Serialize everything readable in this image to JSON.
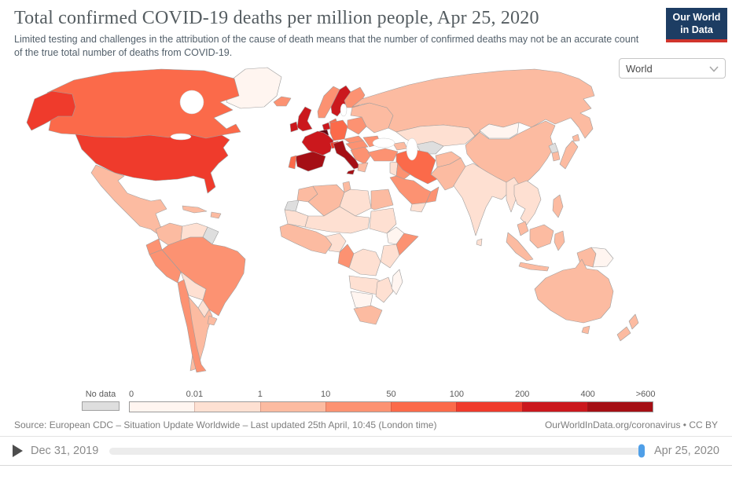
{
  "header": {
    "title": "Total confirmed COVID-19 deaths per million people, Apr 25, 2020",
    "subtitle": "Limited testing and challenges in the attribution of the cause of death means that the number of confirmed deaths may not be an accurate count of the true total number of deaths from COVID-19.",
    "logo": {
      "line1": "Our World",
      "line2": "in Data",
      "bg_color": "#1d3d63",
      "accent_color": "#d0342c"
    }
  },
  "controls": {
    "selector_value": "World"
  },
  "footer": {
    "source_left": "Source: European CDC – Situation Update Worldwide – Last updated 25th April, 10:45 (London time)",
    "source_right": "OurWorldInData.org/coronavirus • CC BY"
  },
  "timeline": {
    "start_label": "Dec 31, 2019",
    "end_label": "Apr 25, 2020",
    "handle_color": "#4f9fe8"
  },
  "chart_data": {
    "type": "heatmap",
    "subtype": "choropleth-world-map",
    "title": "Total confirmed COVID-19 deaths per million people, Apr 25, 2020",
    "date_shown": "Apr 25, 2020",
    "legend": {
      "no_data": {
        "label": "No data",
        "color": "#dedede"
      },
      "tick_labels": [
        "0",
        "0.01",
        "1",
        "10",
        "50",
        "100",
        "200",
        "400",
        ">600"
      ],
      "bin_ranges": [
        "0–0.01",
        "0.01–1",
        "1–10",
        "10–50",
        "50–100",
        "100–200",
        "200–400",
        "400–600"
      ],
      "bin_colors": [
        "#fff5f0",
        "#fee0d2",
        "#fcbba1",
        "#fc9272",
        "#fb6a4a",
        "#ef3b2c",
        "#cb181d",
        "#a50f15"
      ],
      "max_color": "#67000d",
      "position": "bottom"
    },
    "regions": {
      "greenland": 0,
      "canada": 4,
      "alaska": 5,
      "usa": 5,
      "mexico": 2,
      "central-america": 1,
      "cuba": 2,
      "hispaniola": 2,
      "colombia": 2,
      "venezuela": 1,
      "guyanas": "no-data",
      "ecuador": 3,
      "peru": 3,
      "brazil": 3,
      "bolivia": 1,
      "paraguay": 1,
      "chile": 3,
      "argentina": 2,
      "uruguay": 2,
      "iceland": 3,
      "norway": 3,
      "sweden": 6,
      "finland": 3,
      "denmark": 4,
      "uk": 6,
      "ireland": 6,
      "netherlands": 6,
      "belgium": 8,
      "germany": 4,
      "poland": 3,
      "east-europe": 2,
      "czech-slovakia": 3,
      "austria-hungary": 3,
      "france": 6,
      "switzerland": 5,
      "spain": 7,
      "portugal": 4,
      "italy": 7,
      "balkans": 3,
      "romania": 3,
      "greece": 2,
      "turkey": 3,
      "caucasus": 2,
      "syria-levant": 1,
      "iraq": 3,
      "saudi-arabia": 3,
      "yemen": 1,
      "oman": 3,
      "iran": 4,
      "afghanistan": 2,
      "pakistan": 2,
      "turkmenistan": "no-data",
      "kazakhstan": 1,
      "russia": 2,
      "mongolia": 0,
      "china": 2,
      "north-korea": "no-data",
      "south-korea": 2,
      "japan": 2,
      "india": 1,
      "sri-lanka": 1,
      "myanmar": 1,
      "indochina": 1,
      "malaysia": 2,
      "indonesia": 2,
      "philippines": 2,
      "papua-new-guinea": 0,
      "australia": 2,
      "new-zealand": 2,
      "morocco": 2,
      "western-sahara": "no-data",
      "algeria": 2,
      "tunisia": 2,
      "libya": 1,
      "egypt": 2,
      "mauritania": 1,
      "sahel": 1,
      "sudan": 1,
      "west-africa": 2,
      "nigeria": 1,
      "cameroon-gabon": 3,
      "ethiopia": 0,
      "somalia": 3,
      "kenya-tanzania": 1,
      "drc": 1,
      "angola-zambia": 1,
      "namibia-botswana": 0,
      "south-africa": 2,
      "zimbabwe-mozambique": 1,
      "madagascar": 0
    }
  }
}
